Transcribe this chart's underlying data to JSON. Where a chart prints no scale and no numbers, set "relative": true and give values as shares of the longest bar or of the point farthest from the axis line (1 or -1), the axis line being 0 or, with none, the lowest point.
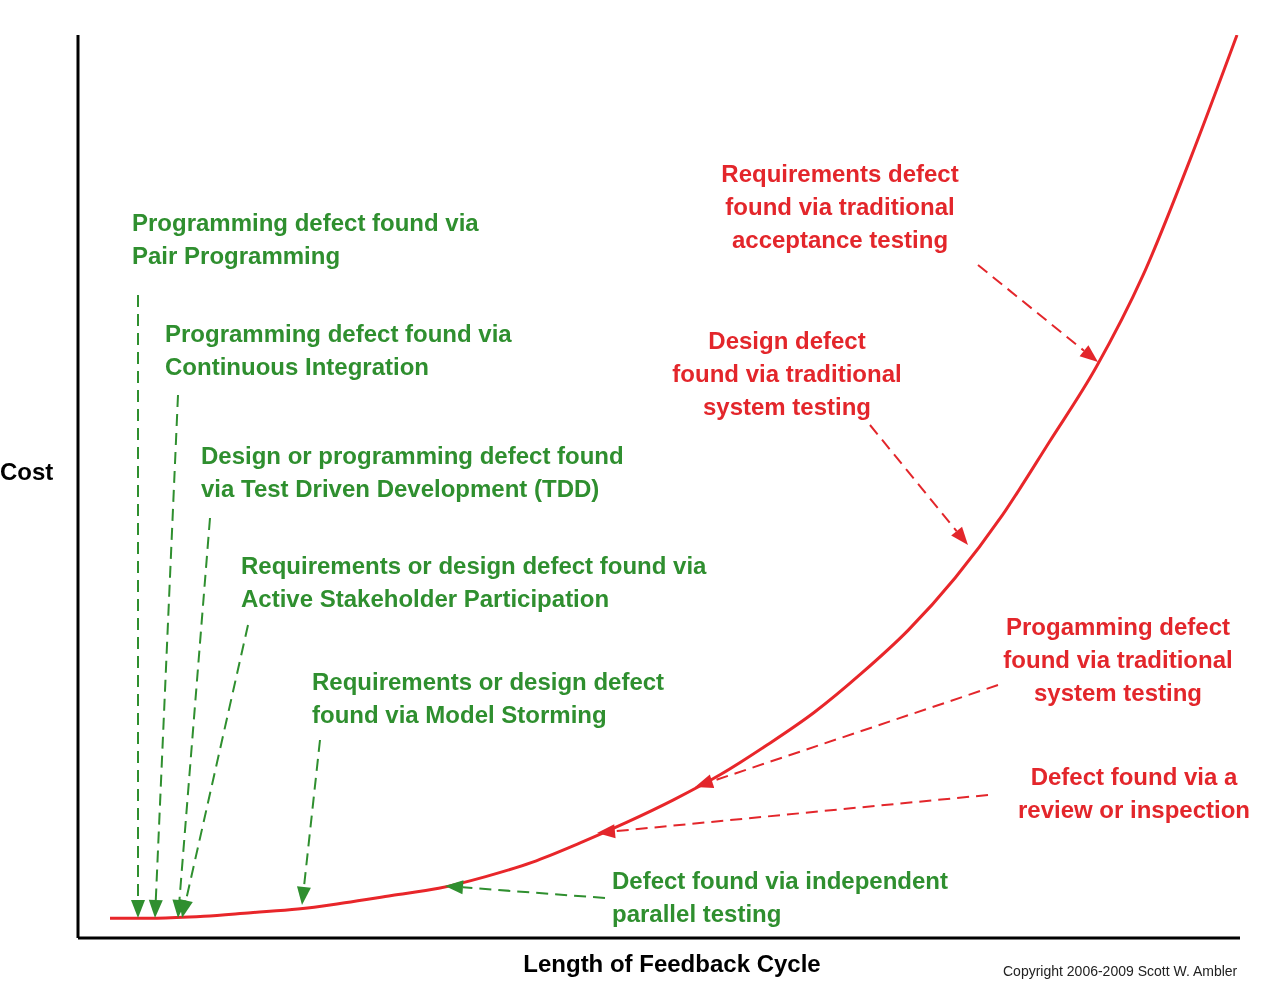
{
  "chart_data": {
    "type": "line",
    "xlabel": "Length of Feedback Cycle",
    "ylabel": "Cost",
    "relative": true,
    "categories": [
      null,
      null,
      null,
      null,
      null,
      null,
      null,
      null,
      null,
      null,
      null,
      null,
      null,
      null,
      null,
      null,
      null,
      null,
      null,
      null,
      null,
      null,
      null,
      null,
      null
    ],
    "series": [
      {
        "color": "#e8262a",
        "values": [
          0.022,
          0.022,
          0.024,
          0.028,
          0.032,
          0.039,
          0.047,
          0.055,
          0.068,
          0.084,
          0.105,
          0.128,
          0.153,
          0.181,
          0.214,
          0.25,
          0.293,
          0.341,
          0.399,
          0.468,
          0.549,
          0.632,
          0.734,
          0.862,
          1
        ]
      }
    ],
    "marker": "none",
    "line_style": "solid",
    "annotations": [
      "Programming defect found via\nPair Programming",
      "Programming defect found via\nContinuous Integration",
      "Design or programming defect found\nvia Test Driven Development (TDD)",
      "Requirements or design defect found via\nActive Stakeholder Participation",
      "Requirements or design defect\nfound via Model Storming",
      "Defect found via independent\nparallel testing",
      "Requirements defect\nfound via traditional\nacceptance testing",
      "Design defect\nfound via traditional\nsystem testing",
      "Progamming defect\nfound via traditional\nsystem testing",
      "Defect found via a\nreview or inspection",
      "Copyright 2006-2009 Scott W. Ambler"
    ]
  }
}
